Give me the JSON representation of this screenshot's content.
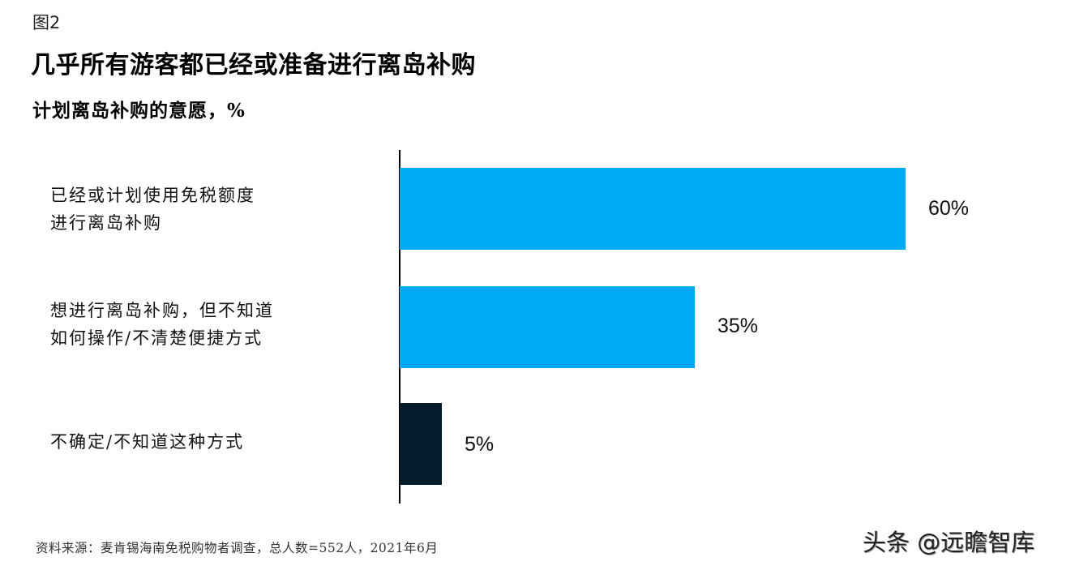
{
  "figure_label": "图2",
  "title": "几乎所有游客都已经或准备进行离岛补购",
  "subtitle": "计划离岛补购的意愿，%",
  "source": "资料来源：麦肯锡海南免税购物者调查，总人数=552人，2021年6月",
  "watermark": "头条 @远瞻智库",
  "colors": {
    "primary_bar": "#00a9f4",
    "dark_bar": "#051c2c",
    "axis": "#000000"
  },
  "bars": [
    {
      "label": "已经或计划使用免税额度\n进行离岛补购",
      "value": 60,
      "display": "60%",
      "color": "#00a9f4"
    },
    {
      "label": "想进行离岛补购，但不知道\n如何操作/不清楚便捷方式",
      "value": 35,
      "display": "35%",
      "color": "#00a9f4"
    },
    {
      "label": "不确定/不知道这种方式",
      "value": 5,
      "display": "5%",
      "color": "#051c2c"
    }
  ],
  "chart_data": {
    "type": "bar",
    "orientation": "horizontal",
    "title": "几乎所有游客都已经或准备进行离岛补购",
    "subtitle": "计划离岛补购的意愿，%",
    "categories": [
      "已经或计划使用免税额度进行离岛补购",
      "想进行离岛补购，但不知道如何操作/不清楚便捷方式",
      "不确定/不知道这种方式"
    ],
    "values": [
      60,
      35,
      5
    ],
    "data_labels": [
      "60%",
      "35%",
      "5%"
    ],
    "bar_colors": [
      "#00a9f4",
      "#00a9f4",
      "#051c2c"
    ],
    "xlabel": "",
    "ylabel": "",
    "xlim": [
      0,
      60
    ],
    "grid": false,
    "legend": null,
    "source_note": "资料来源：麦肯锡海南免税购物者调查，总人数=552人，2021年6月"
  }
}
